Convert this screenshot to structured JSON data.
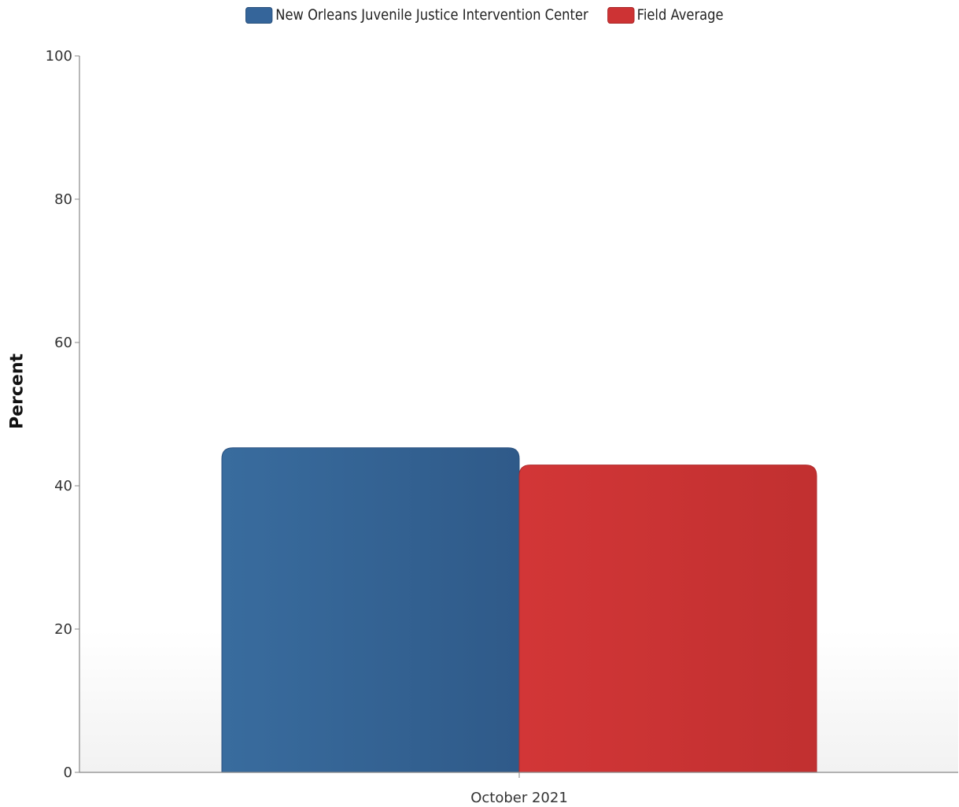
{
  "chart_data": {
    "type": "bar",
    "categories": [
      "October 2021"
    ],
    "series": [
      {
        "name": "New Orleans Juvenile Justice Intervention Center",
        "values": [
          45.3
        ],
        "color": "#35659a"
      },
      {
        "name": "Field Average",
        "values": [
          42.9
        ],
        "color": "#cd3334"
      }
    ],
    "ylabel": "Percent",
    "ylim": [
      0,
      100
    ],
    "yticks": [
      "0",
      "20",
      "40",
      "60",
      "80",
      "100"
    ],
    "legend": "top-center",
    "grid": false
  }
}
